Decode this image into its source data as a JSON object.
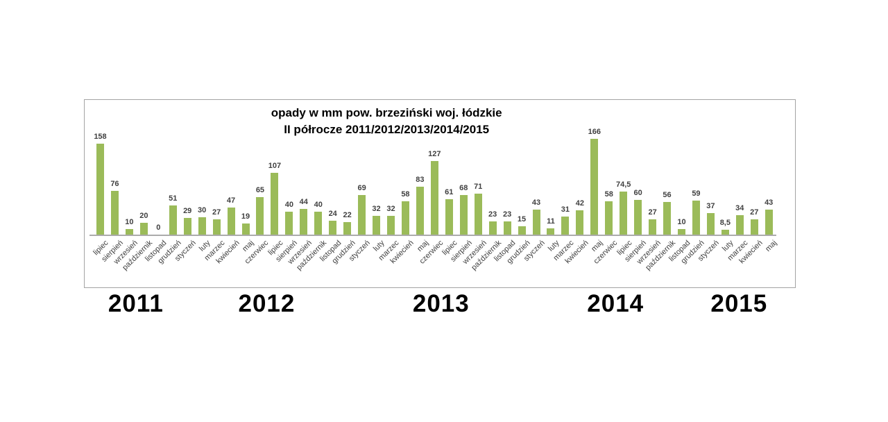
{
  "chart_data": {
    "type": "bar",
    "title": "opady w mm pow. brzeziński woj. łódzkie",
    "subtitle": "II półrocze 2011/2012/2013/2014/2015",
    "ylabel": "opady w mm",
    "ylim": [
      0,
      175
    ],
    "grid": false,
    "legend": "none",
    "bar_color": "#9bbb59",
    "value_labels_shown": true,
    "groups": [
      {
        "year": "2011",
        "categories": [
          "lipiec",
          "sierpień",
          "wrzesień",
          "październik",
          "listopad",
          "grudzień"
        ],
        "values": [
          "158",
          "76",
          "10",
          "20",
          "0",
          "51"
        ]
      },
      {
        "year": "2012",
        "categories": [
          "styczeń",
          "luty",
          "marzec",
          "kwiecień",
          "maj",
          "czerwiec",
          "lipiec",
          "sierpień",
          "wrzesień",
          "październik",
          "listopad",
          "grudzień"
        ],
        "values": [
          "29",
          "30",
          "27",
          "47",
          "19",
          "65",
          "107",
          "40",
          "44",
          "40",
          "24",
          "22"
        ]
      },
      {
        "year": "2013",
        "categories": [
          "styczeń",
          "luty",
          "marzec",
          "kwiecień",
          "maj",
          "czerwiec",
          "lipiec",
          "sierpień",
          "wrzesień",
          "październik",
          "listopad",
          "grudzień"
        ],
        "values": [
          "69",
          "32",
          "32",
          "58",
          "83",
          "127",
          "61",
          "68",
          "71",
          "23",
          "23",
          "15"
        ]
      },
      {
        "year": "2014",
        "categories": [
          "styczeń",
          "luty",
          "marzec",
          "kwiecień",
          "maj",
          "czerwiec",
          "lipiec",
          "sierpień",
          "wrzesień",
          "październik",
          "listopad",
          "grudzień"
        ],
        "values": [
          "43",
          "11",
          "31",
          "42",
          "166",
          "58",
          "74,5",
          "60",
          "27",
          "56",
          "10",
          "59"
        ]
      },
      {
        "year": "2015",
        "categories": [
          "styczeń",
          "luty",
          "marzec",
          "kwiecień",
          "maj"
        ],
        "values": [
          "37",
          "8,5",
          "34",
          "27",
          "43"
        ]
      }
    ]
  }
}
